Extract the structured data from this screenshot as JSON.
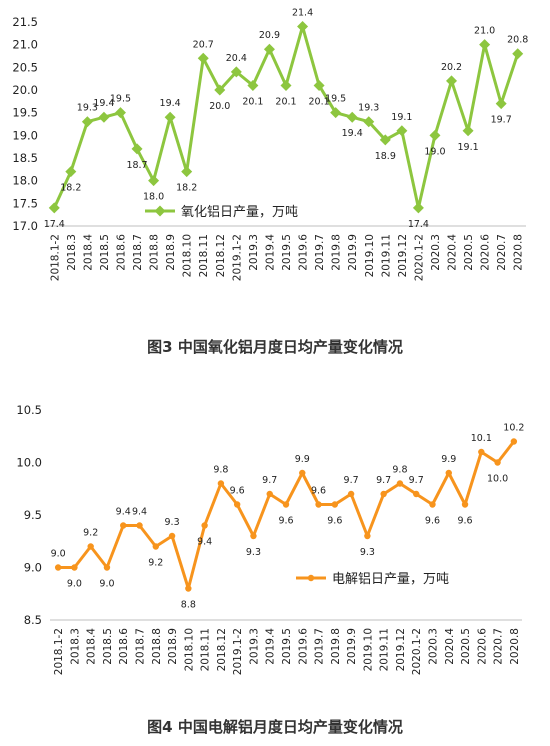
{
  "chart_data": [
    {
      "type": "line",
      "marker": "diamond",
      "color": "#8DC63F",
      "categories": [
        "2018.1-2",
        "2018.3",
        "2018.4",
        "2018.5",
        "2018.6",
        "2018.7",
        "2018.8",
        "2018.9",
        "2018.10",
        "2018.11",
        "2018.12",
        "2019.1-2",
        "2019.3",
        "2019.4",
        "2019.5",
        "2019.6",
        "2019.7",
        "2019.8",
        "2019.9",
        "2019.10",
        "2019.11",
        "2019.12",
        "2020.1-2",
        "2020.3",
        "2020.4",
        "2020.5",
        "2020.6",
        "2020.7",
        "2020.8"
      ],
      "series": [
        {
          "name": "氧化铝日产量，万吨",
          "values": [
            17.4,
            18.2,
            19.3,
            19.4,
            19.5,
            18.7,
            18.0,
            19.4,
            18.2,
            20.7,
            20.0,
            20.4,
            20.1,
            20.9,
            20.1,
            21.4,
            20.1,
            19.5,
            19.4,
            19.3,
            18.9,
            19.1,
            17.4,
            19.0,
            20.2,
            19.1,
            21.0,
            19.7,
            20.8
          ]
        }
      ],
      "yticks": [
        "17.0",
        "17.5",
        "18.0",
        "18.5",
        "19.0",
        "19.5",
        "20.0",
        "20.5",
        "21.0",
        "21.5"
      ],
      "ylim": [
        17.0,
        21.5
      ],
      "legend_position": "bottom-center",
      "caption": "图3 中国氧化铝月度日均产量变化情况"
    },
    {
      "type": "line",
      "marker": "circle",
      "color": "#F7941D",
      "categories": [
        "2018.1-2",
        "2018.3",
        "2018.4",
        "2018.5",
        "2018.6",
        "2018.7",
        "2018.8",
        "2018.9",
        "2018.10",
        "2018.11",
        "2018.12",
        "2019.1-2",
        "2019.3",
        "2019.4",
        "2019.5",
        "2019.6",
        "2019.7",
        "2019.8",
        "2019.9",
        "2019.10",
        "2019.11",
        "2019.12",
        "2020.1-2",
        "2020.3",
        "2020.4",
        "2020.5",
        "2020.6",
        "2020.7",
        "2020.8"
      ],
      "series": [
        {
          "name": "电解铝日产量，万吨",
          "values": [
            9.0,
            9.0,
            9.2,
            9.0,
            9.4,
            9.4,
            9.2,
            9.3,
            8.8,
            9.4,
            9.8,
            9.6,
            9.3,
            9.7,
            9.6,
            9.9,
            9.6,
            9.6,
            9.7,
            9.3,
            9.7,
            9.8,
            9.7,
            9.6,
            9.9,
            9.6,
            10.1,
            10.0,
            10.2
          ]
        }
      ],
      "yticks": [
        "8.5",
        "9.0",
        "9.5",
        "10.0",
        "10.5"
      ],
      "ylim": [
        8.5,
        10.5
      ],
      "legend_position": "bottom-center",
      "caption": "图4 中国电解铝月度日均产量变化情况"
    }
  ]
}
